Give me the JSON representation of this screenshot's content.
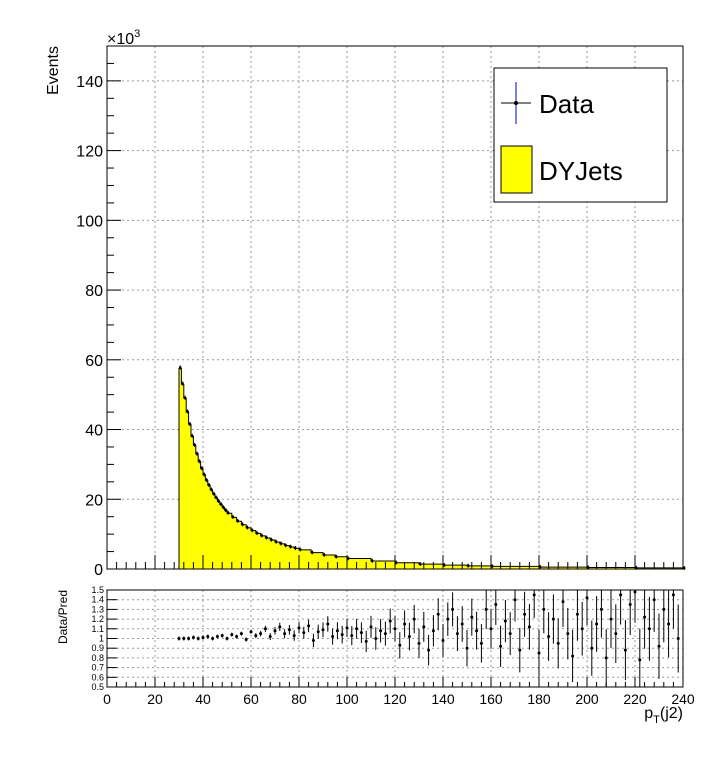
{
  "chart_data": [
    {
      "type": "histogram",
      "ylabel": "Events",
      "y_multiplier_label": "×10",
      "y_multiplier_exp": "3",
      "ylim": [
        0,
        150000
      ],
      "xlim": [
        0,
        240
      ],
      "y_ticks": [
        0,
        20,
        40,
        60,
        80,
        100,
        120,
        140
      ],
      "x_ticks": [
        0,
        20,
        40,
        60,
        80,
        100,
        120,
        140,
        160,
        180,
        200,
        220,
        240
      ],
      "grid": true,
      "legend_position": "top-right",
      "legend": [
        {
          "label": "Data",
          "style": "marker-errorbar",
          "color": "#000000"
        },
        {
          "label": "DYJets",
          "style": "filled",
          "color": "#ffff00"
        }
      ],
      "series": [
        {
          "name": "DYJets",
          "bin_width": 1,
          "x": [
            30,
            31,
            32,
            33,
            34,
            35,
            36,
            37,
            38,
            39,
            40,
            41,
            42,
            43,
            44,
            45,
            46,
            47,
            48,
            49,
            50,
            52,
            54,
            56,
            58,
            60,
            62,
            64,
            66,
            68,
            70,
            72,
            74,
            76,
            78,
            80,
            85,
            90,
            95,
            100,
            110,
            120,
            130,
            140,
            150,
            160,
            180,
            200,
            220,
            240
          ],
          "values": [
            57500,
            53000,
            49000,
            45000,
            41500,
            38000,
            35500,
            33000,
            30800,
            28800,
            27000,
            25400,
            24000,
            22700,
            21500,
            20400,
            19400,
            18500,
            17600,
            16800,
            16000,
            14800,
            13700,
            12700,
            11800,
            11000,
            10200,
            9500,
            8900,
            8300,
            7700,
            7200,
            6700,
            6300,
            5900,
            5500,
            4700,
            4000,
            3500,
            3000,
            2300,
            1800,
            1400,
            1100,
            900,
            750,
            550,
            420,
            330,
            260
          ]
        },
        {
          "name": "Data",
          "x": [
            30,
            31,
            32,
            33,
            34,
            35,
            36,
            37,
            38,
            39,
            40,
            41,
            42,
            43,
            44,
            45,
            46,
            47,
            48,
            49,
            50,
            52,
            54,
            56,
            58,
            60,
            62,
            64,
            66,
            68,
            70,
            72,
            74,
            76,
            78,
            80,
            85,
            90,
            95,
            100,
            110,
            120,
            130,
            140,
            150,
            160,
            180,
            200,
            220,
            240
          ],
          "values": [
            57800,
            53200,
            49100,
            45200,
            41600,
            38200,
            35600,
            33100,
            30900,
            28900,
            27100,
            25500,
            24100,
            22800,
            21600,
            20500,
            19500,
            18600,
            17700,
            16900,
            16100,
            14900,
            13800,
            12800,
            11900,
            11100,
            10300,
            9600,
            9000,
            8400,
            7800,
            7300,
            6800,
            6400,
            6000,
            5600,
            4750,
            4050,
            3550,
            3050,
            2350,
            1850,
            1450,
            1150,
            950,
            800,
            600,
            450,
            360,
            280
          ]
        }
      ]
    },
    {
      "type": "scatter",
      "ylabel": "Data/Pred",
      "xlabel": "p",
      "xlabel_sub": "T",
      "xlabel_suffix": "(j2)",
      "ylim": [
        0.5,
        1.5
      ],
      "xlim": [
        0,
        240
      ],
      "y_ticks": [
        0.5,
        0.6,
        0.7,
        0.8,
        0.9,
        1,
        1.1,
        1.2,
        1.3,
        1.4,
        1.5
      ],
      "x_ticks": [
        0,
        20,
        40,
        60,
        80,
        100,
        120,
        140,
        160,
        180,
        200,
        220,
        240
      ],
      "grid": true,
      "series": [
        {
          "name": "Data/Pred",
          "x": [
            30,
            32,
            34,
            36,
            38,
            40,
            42,
            44,
            46,
            48,
            50,
            52,
            54,
            56,
            58,
            60,
            62,
            64,
            66,
            68,
            70,
            72,
            74,
            76,
            78,
            80,
            82,
            84,
            86,
            88,
            90,
            92,
            94,
            96,
            98,
            100,
            102,
            104,
            106,
            108,
            110,
            112,
            114,
            116,
            118,
            120,
            122,
            124,
            126,
            128,
            130,
            132,
            134,
            136,
            138,
            140,
            142,
            144,
            146,
            148,
            150,
            152,
            154,
            156,
            158,
            160,
            162,
            164,
            166,
            168,
            170,
            172,
            174,
            176,
            178,
            180,
            182,
            184,
            186,
            188,
            190,
            192,
            194,
            196,
            198,
            200,
            202,
            204,
            206,
            208,
            210,
            212,
            214,
            216,
            218,
            220,
            222,
            224,
            226,
            228,
            230,
            232,
            234,
            236,
            238
          ],
          "values": [
            1.0,
            1.0,
            1.0,
            1.01,
            1.0,
            1.01,
            1.02,
            1.0,
            1.02,
            1.03,
            1.0,
            1.04,
            1.02,
            1.05,
            0.99,
            1.07,
            1.03,
            1.05,
            1.1,
            1.02,
            1.08,
            1.12,
            1.05,
            1.09,
            1.03,
            1.11,
            1.06,
            1.13,
            0.98,
            1.07,
            1.09,
            1.15,
            1.02,
            1.08,
            1.04,
            1.11,
            1.03,
            1.1,
            1.06,
            0.97,
            1.12,
            1.0,
            1.08,
            1.05,
            1.18,
            1.1,
            0.93,
            1.15,
            1.02,
            1.2,
            0.95,
            1.12,
            0.88,
            1.08,
            1.25,
            0.98,
            1.2,
            1.3,
            1.05,
            1.15,
            0.9,
            1.22,
            1.08,
            0.95,
            1.3,
            1.1,
            1.35,
            0.92,
            1.18,
            1.05,
            1.4,
            0.88,
            1.25,
            1.12,
            1.45,
            0.85,
            1.3,
            1.02,
            1.2,
            0.95,
            1.38,
            1.05,
            0.82,
            1.25,
            1.1,
            1.42,
            0.9,
            1.15,
            1.3,
            0.8,
            1.2,
            1.05,
            1.45,
            0.88,
            1.35,
            1.48,
            0.78,
            1.22,
            1.1,
            1.4,
            0.92,
            1.3,
            1.15,
            1.45,
            1.0
          ]
        }
      ]
    }
  ]
}
